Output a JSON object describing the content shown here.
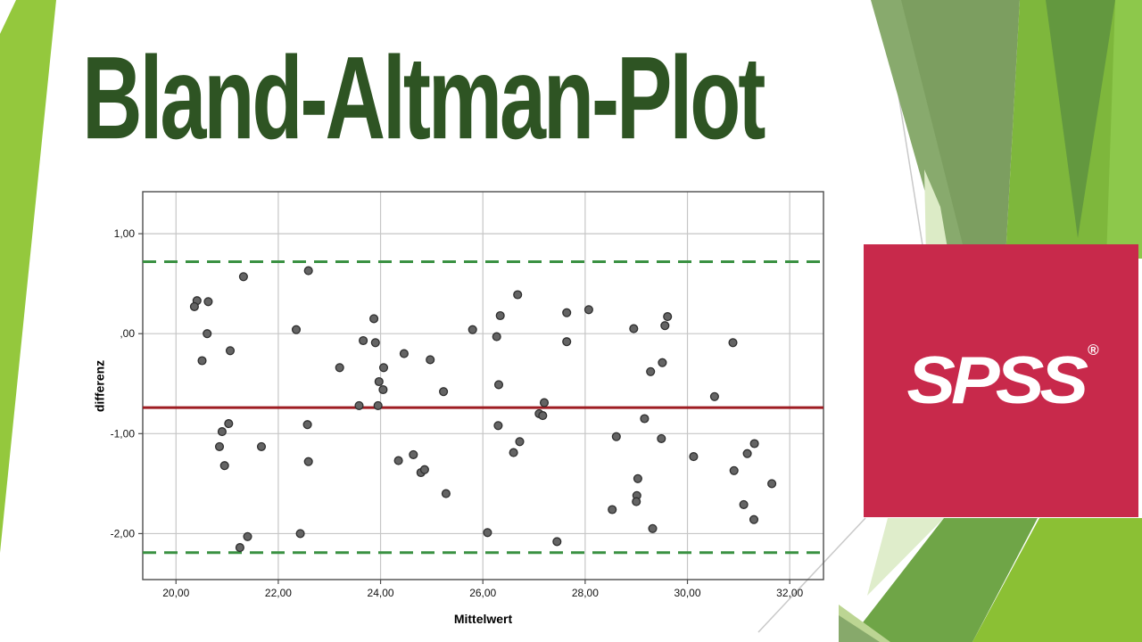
{
  "slide": {
    "title": "Bland-Altman-Plot"
  },
  "logo": {
    "text": "SPSS",
    "registered_mark": "®"
  },
  "palette": {
    "title_green": "#2e5423",
    "logo_red": "#c8294b",
    "left_wedge": "#94c83d",
    "sage": "#7c9e60",
    "sage_light": "#88aa6d",
    "bright_green": "#7eb73c",
    "bright_light": "#8dc84b",
    "dark_v": "#63983f",
    "pale_sliver": "#dcebc6",
    "pale_green": "#dfedcb",
    "mid_green": "#6fa547",
    "bottom_bright": "#8bc034",
    "corner_light": "#bcd593",
    "corner_sage": "#87a96b",
    "hairline": "#c9c9c9",
    "grid": "#c6c6c6",
    "frame": "#4d4d4d",
    "tick_text": "#111111",
    "point_fill": "#646464",
    "point_stroke": "#2e2e2e"
  },
  "chart_data": {
    "type": "scatter",
    "xlabel": "Mittelwert",
    "ylabel": "differenz",
    "grid": true,
    "xlim": [
      19.35,
      32.66
    ],
    "ylim": [
      -2.46,
      1.42
    ],
    "x_tick_values": [
      20,
      22,
      24,
      26,
      28,
      30,
      32
    ],
    "x_tick_labels": [
      "20,00",
      "22,00",
      "24,00",
      "26,00",
      "28,00",
      "30,00",
      "32,00"
    ],
    "y_tick_values": [
      1,
      0,
      -1,
      -2
    ],
    "y_tick_labels": [
      "1,00",
      ",00",
      "-1,00",
      "-2,00"
    ],
    "mean_line": {
      "value": -0.74,
      "color": "#9e1c22",
      "style": "solid"
    },
    "upper_loa": {
      "value": 0.72,
      "color": "#3a9142",
      "style": "dashed"
    },
    "lower_loa": {
      "value": -2.19,
      "color": "#3a9142",
      "style": "dashed"
    },
    "points": [
      [
        20.41,
        0.33
      ],
      [
        20.63,
        0.32
      ],
      [
        20.36,
        0.27
      ],
      [
        20.61,
        0.0
      ],
      [
        21.32,
        0.57
      ],
      [
        22.59,
        0.63
      ],
      [
        22.35,
        0.04
      ],
      [
        21.06,
        -0.17
      ],
      [
        20.51,
        -0.27
      ],
      [
        23.87,
        0.15
      ],
      [
        23.66,
        -0.07
      ],
      [
        23.9,
        -0.09
      ],
      [
        23.2,
        -0.34
      ],
      [
        24.46,
        -0.2
      ],
      [
        24.06,
        -0.34
      ],
      [
        24.97,
        -0.26
      ],
      [
        25.23,
        -0.58
      ],
      [
        23.97,
        -0.48
      ],
      [
        24.05,
        -0.56
      ],
      [
        23.95,
        -0.72
      ],
      [
        23.58,
        -0.72
      ],
      [
        21.03,
        -0.9
      ],
      [
        20.9,
        -0.98
      ],
      [
        20.85,
        -1.13
      ],
      [
        21.67,
        -1.13
      ],
      [
        20.95,
        -1.32
      ],
      [
        22.57,
        -0.91
      ],
      [
        22.59,
        -1.28
      ],
      [
        21.4,
        -2.03
      ],
      [
        21.25,
        -2.14
      ],
      [
        22.43,
        -2.0
      ],
      [
        24.35,
        -1.27
      ],
      [
        24.64,
        -1.21
      ],
      [
        24.79,
        -1.39
      ],
      [
        24.86,
        -1.36
      ],
      [
        25.28,
        -1.6
      ],
      [
        26.68,
        0.39
      ],
      [
        26.34,
        0.18
      ],
      [
        25.8,
        0.04
      ],
      [
        26.27,
        -0.03
      ],
      [
        27.64,
        0.21
      ],
      [
        28.07,
        0.24
      ],
      [
        27.64,
        -0.08
      ],
      [
        28.95,
        0.05
      ],
      [
        29.61,
        0.17
      ],
      [
        29.56,
        0.08
      ],
      [
        29.28,
        -0.38
      ],
      [
        29.51,
        -0.29
      ],
      [
        30.89,
        -0.09
      ],
      [
        26.31,
        -0.51
      ],
      [
        27.2,
        -0.69
      ],
      [
        30.53,
        -0.63
      ],
      [
        27.1,
        -0.8
      ],
      [
        27.17,
        -0.82
      ],
      [
        26.3,
        -0.92
      ],
      [
        26.72,
        -1.08
      ],
      [
        26.6,
        -1.19
      ],
      [
        28.61,
        -1.03
      ],
      [
        29.16,
        -0.85
      ],
      [
        29.49,
        -1.05
      ],
      [
        30.12,
        -1.23
      ],
      [
        29.03,
        -1.45
      ],
      [
        29.01,
        -1.62
      ],
      [
        29.0,
        -1.68
      ],
      [
        28.53,
        -1.76
      ],
      [
        29.32,
        -1.95
      ],
      [
        26.09,
        -1.99
      ],
      [
        27.45,
        -2.08
      ],
      [
        30.91,
        -1.37
      ],
      [
        31.17,
        -1.2
      ],
      [
        31.31,
        -1.1
      ],
      [
        31.1,
        -1.71
      ],
      [
        31.3,
        -1.86
      ],
      [
        31.65,
        -1.5
      ]
    ]
  }
}
